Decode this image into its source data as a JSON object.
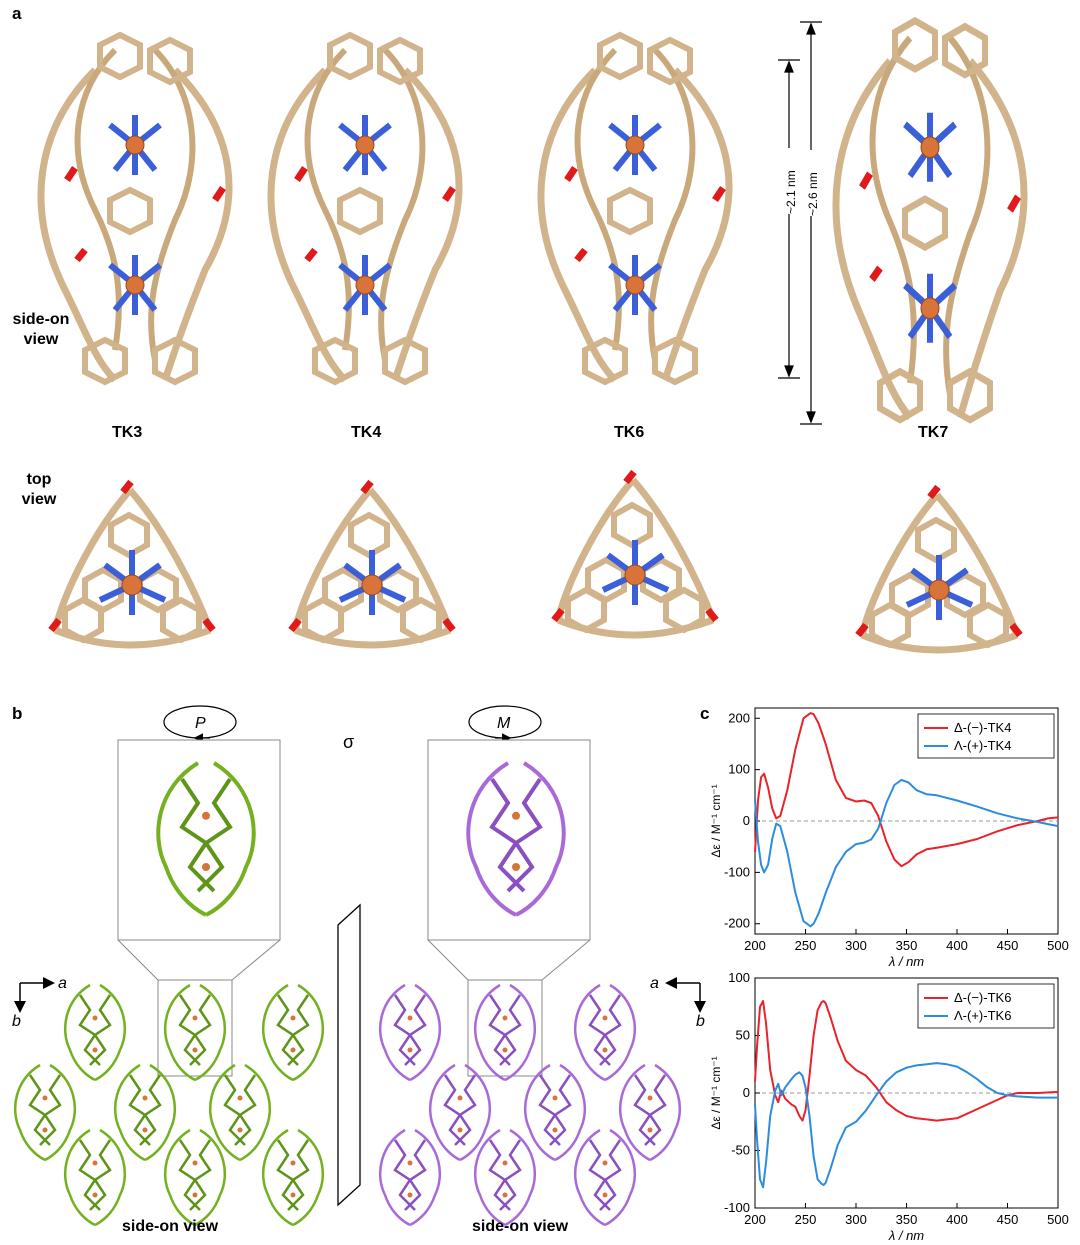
{
  "figure": {
    "panel_a": {
      "letter": "a",
      "side_label": "side-on\nview",
      "top_label": "top\nview",
      "molecules": [
        "TK3",
        "TK4",
        "TK6",
        "TK7"
      ],
      "dim_short": "~2.1 nm",
      "dim_long": "~2.6 nm",
      "colors": {
        "frame": "#d2b48c",
        "nitrogen": "#3a5fd8",
        "oxygen": "#e01a1a",
        "metal": "#d8743a"
      }
    },
    "panel_b": {
      "letter": "b",
      "left_helix": "P",
      "right_helix": "M",
      "mirror": "σ",
      "axis_a": "a",
      "axis_b": "b",
      "left_caption": "side-on view",
      "right_caption": "side-on view",
      "colors": {
        "left": "#74b020",
        "right": "#a86ad8",
        "metal": "#d8743a"
      }
    },
    "panel_c": {
      "letter": "c"
    }
  },
  "chart_data": [
    {
      "type": "line",
      "ylabel": "Δε / M⁻¹ cm⁻¹",
      "xlabel": "λ / nm",
      "xlim": [
        200,
        500
      ],
      "ylim": [
        -220,
        220
      ],
      "xticks": [
        "200",
        "250",
        "300",
        "350",
        "400",
        "450",
        "500"
      ],
      "yticks": [
        "200",
        "100",
        "0",
        "-100",
        "-200"
      ],
      "legend_position": "top-right",
      "series": [
        {
          "name": "Δ-(−)-TK4",
          "color": "#e8232a",
          "x": [
            200,
            203,
            206,
            209,
            213,
            217,
            221,
            225,
            232,
            240,
            248,
            255,
            258,
            263,
            270,
            280,
            290,
            300,
            308,
            315,
            322,
            330,
            338,
            345,
            352,
            360,
            370,
            380,
            400,
            420,
            440,
            460,
            480,
            490,
            500
          ],
          "y": [
            -60,
            40,
            85,
            92,
            65,
            25,
            5,
            10,
            60,
            140,
            200,
            210,
            208,
            190,
            150,
            80,
            45,
            38,
            40,
            35,
            10,
            -40,
            -75,
            -88,
            -80,
            -65,
            -55,
            -52,
            -45,
            -35,
            -20,
            -8,
            0,
            5,
            7
          ]
        },
        {
          "name": "Λ-(+)-TK4",
          "color": "#2b8ce0",
          "x": [
            200,
            203,
            206,
            209,
            213,
            217,
            221,
            225,
            232,
            240,
            248,
            255,
            258,
            263,
            270,
            280,
            290,
            300,
            308,
            315,
            322,
            330,
            338,
            345,
            352,
            360,
            370,
            380,
            400,
            420,
            440,
            460,
            480,
            490,
            500
          ],
          "y": [
            40,
            -40,
            -85,
            -100,
            -85,
            -35,
            -5,
            -10,
            -60,
            -140,
            -195,
            -205,
            -200,
            -180,
            -140,
            -90,
            -60,
            -45,
            -42,
            -36,
            -15,
            35,
            70,
            80,
            75,
            60,
            52,
            50,
            40,
            28,
            15,
            5,
            -2,
            -6,
            -10
          ]
        }
      ]
    },
    {
      "type": "line",
      "ylabel": "Δε / M⁻¹ cm⁻¹",
      "xlabel": "λ / nm",
      "xlim": [
        200,
        500
      ],
      "ylim": [
        -100,
        100
      ],
      "xticks": [
        "200",
        "250",
        "300",
        "350",
        "400",
        "450",
        "500"
      ],
      "yticks": [
        "100",
        "50",
        "0",
        "-50",
        "-100"
      ],
      "legend_position": "top-right",
      "series": [
        {
          "name": "Δ-(−)-TK6",
          "color": "#e8232a",
          "x": [
            200,
            202,
            205,
            208,
            211,
            215,
            220,
            223,
            226,
            230,
            236,
            240,
            244,
            247,
            250,
            254,
            258,
            262,
            266,
            268,
            270,
            275,
            282,
            290,
            300,
            310,
            320,
            330,
            340,
            350,
            360,
            370,
            380,
            390,
            400,
            410,
            420,
            430,
            440,
            450,
            460,
            480,
            500
          ],
          "y": [
            10,
            40,
            75,
            80,
            60,
            20,
            -2,
            -8,
            2,
            -5,
            -10,
            -12,
            -20,
            -24,
            -15,
            15,
            50,
            72,
            79,
            80,
            78,
            65,
            45,
            28,
            20,
            15,
            5,
            -8,
            -15,
            -20,
            -22,
            -23,
            -24,
            -23,
            -22,
            -18,
            -14,
            -10,
            -6,
            -2,
            0,
            0,
            1
          ]
        },
        {
          "name": "Λ-(+)-TK6",
          "color": "#2b8ce0",
          "x": [
            200,
            202,
            205,
            208,
            211,
            215,
            220,
            223,
            226,
            230,
            236,
            240,
            244,
            247,
            250,
            254,
            258,
            262,
            266,
            268,
            270,
            275,
            282,
            290,
            300,
            310,
            320,
            330,
            340,
            350,
            360,
            370,
            380,
            390,
            400,
            410,
            420,
            430,
            440,
            450,
            460,
            480,
            500
          ],
          "y": [
            -10,
            -40,
            -75,
            -82,
            -60,
            -20,
            2,
            8,
            -2,
            5,
            12,
            16,
            18,
            15,
            5,
            -20,
            -55,
            -75,
            -79,
            -80,
            -78,
            -65,
            -45,
            -30,
            -25,
            -15,
            -2,
            10,
            18,
            22,
            24,
            25,
            26,
            25,
            23,
            18,
            12,
            5,
            0,
            -2,
            -3,
            -4,
            -4
          ]
        }
      ]
    }
  ]
}
